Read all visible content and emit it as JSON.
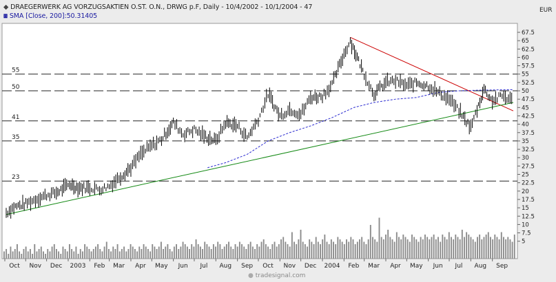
{
  "header": {
    "title": "DRAEGERWERK AG VORZUGSAKTIEN O.ST. O.N., DRWG p.F, Daily - 10/4/2002 - 10/1/2004 - 47",
    "indicator": "SMA [Close, 200]:50.31405",
    "currency": "EUR",
    "title_icon": "diamond-icon",
    "indicator_icon": "sma-icon"
  },
  "watermark": "tradesignal.com",
  "chart_data": {
    "type": "line",
    "x_ticks": [
      "Oct",
      "Nov",
      "Dec",
      "2003",
      "Feb",
      "Mar",
      "Apr",
      "May",
      "Jun",
      "Jul",
      "Aug",
      "Sep",
      "Oct",
      "Nov",
      "Dec",
      "2004",
      "Feb",
      "Mar",
      "Apr",
      "May",
      "Jun",
      "Jul",
      "Aug",
      "Sep"
    ],
    "y_ticks": [
      5,
      7.5,
      10,
      12.5,
      15,
      17.5,
      20,
      22.5,
      25,
      27.5,
      30,
      32.5,
      35,
      37.5,
      40,
      42.5,
      45,
      47.5,
      50,
      52.5,
      55,
      57.5,
      60,
      62.5,
      65,
      67.5
    ],
    "ylim": [
      0,
      69
    ],
    "x_range": [
      "2002-10-04",
      "2004-10-01"
    ],
    "levels": [
      {
        "label": "55",
        "value": 55
      },
      {
        "label": "50",
        "value": 50
      },
      {
        "label": "41",
        "value": 41
      },
      {
        "label": "35",
        "value": 35
      },
      {
        "label": "23",
        "value": 23
      }
    ],
    "price": [
      [
        "2002-10-04",
        13.5
      ],
      [
        "2002-10-15",
        15.2
      ],
      [
        "2002-11-01",
        16.2
      ],
      [
        "2002-11-15",
        17.5
      ],
      [
        "2002-12-01",
        18.8
      ],
      [
        "2002-12-15",
        19.5
      ],
      [
        "2003-01-03",
        22.0
      ],
      [
        "2003-01-15",
        21.0
      ],
      [
        "2003-02-01",
        21.0
      ],
      [
        "2003-02-15",
        20.5
      ],
      [
        "2003-03-01",
        21.5
      ],
      [
        "2003-03-15",
        24.0
      ],
      [
        "2003-04-01",
        27.0
      ],
      [
        "2003-04-15",
        31.0
      ],
      [
        "2003-05-01",
        33.5
      ],
      [
        "2003-05-15",
        35.5
      ],
      [
        "2003-06-01",
        40.5
      ],
      [
        "2003-06-15",
        37.0
      ],
      [
        "2003-07-01",
        38.5
      ],
      [
        "2003-07-15",
        36.5
      ],
      [
        "2003-08-01",
        35.0
      ],
      [
        "2003-08-15",
        40.5
      ],
      [
        "2003-09-01",
        39.5
      ],
      [
        "2003-09-15",
        36.0
      ],
      [
        "2003-10-01",
        41.5
      ],
      [
        "2003-10-15",
        49.0
      ],
      [
        "2003-11-01",
        42.5
      ],
      [
        "2003-11-15",
        44.5
      ],
      [
        "2003-12-01",
        43.0
      ],
      [
        "2003-12-15",
        48.0
      ],
      [
        "2004-01-01",
        48.5
      ],
      [
        "2004-01-15",
        52.0
      ],
      [
        "2004-02-01",
        61.0
      ],
      [
        "2004-02-10",
        65.0
      ],
      [
        "2004-02-20",
        60.0
      ],
      [
        "2004-03-01",
        55.0
      ],
      [
        "2004-03-15",
        49.0
      ],
      [
        "2004-04-01",
        52.5
      ],
      [
        "2004-04-15",
        53.0
      ],
      [
        "2004-05-01",
        51.5
      ],
      [
        "2004-05-15",
        52.5
      ],
      [
        "2004-06-01",
        51.5
      ],
      [
        "2004-06-15",
        49.5
      ],
      [
        "2004-07-01",
        47.5
      ],
      [
        "2004-07-15",
        44.0
      ],
      [
        "2004-08-01",
        39.0
      ],
      [
        "2004-08-10",
        44.5
      ],
      [
        "2004-08-20",
        50.5
      ],
      [
        "2004-09-01",
        47.0
      ],
      [
        "2004-09-15",
        48.5
      ],
      [
        "2004-10-01",
        47.0
      ]
    ],
    "sma200": [
      [
        "2003-07-20",
        27.0
      ],
      [
        "2003-08-15",
        28.5
      ],
      [
        "2003-09-15",
        31.0
      ],
      [
        "2003-10-15",
        35.0
      ],
      [
        "2003-11-15",
        37.5
      ],
      [
        "2003-12-15",
        39.5
      ],
      [
        "2004-01-15",
        42.0
      ],
      [
        "2004-02-15",
        45.0
      ],
      [
        "2004-03-15",
        46.5
      ],
      [
        "2004-04-15",
        47.5
      ],
      [
        "2004-05-15",
        48.0
      ],
      [
        "2004-06-15",
        49.5
      ],
      [
        "2004-07-15",
        50.0
      ],
      [
        "2004-08-15",
        50.2
      ],
      [
        "2004-09-15",
        50.3
      ],
      [
        "2004-10-01",
        50.31405
      ]
    ],
    "trendlines": [
      {
        "color": "#cc0000",
        "from": [
          "2004-02-10",
          66.0
        ],
        "to": [
          "2004-10-01",
          44.0
        ]
      },
      {
        "color": "#118811",
        "from": [
          "2002-10-04",
          13.0
        ],
        "to": [
          "2004-10-01",
          46.5
        ]
      }
    ],
    "volume": [
      3,
      4,
      2,
      5,
      3,
      4,
      6,
      3,
      2,
      4,
      5,
      3,
      4,
      2,
      6,
      3,
      4,
      5,
      3,
      2,
      4,
      3,
      5,
      6,
      4,
      3,
      2,
      5,
      4,
      3,
      6,
      4,
      3,
      5,
      2,
      4,
      3,
      6,
      5,
      4,
      3,
      4,
      5,
      6,
      4,
      3,
      5,
      7,
      4,
      3,
      5,
      4,
      6,
      3,
      4,
      5,
      3,
      4,
      6,
      5,
      4,
      3,
      5,
      4,
      6,
      5,
      4,
      3,
      6,
      5,
      4,
      5,
      7,
      4,
      5,
      6,
      4,
      3,
      5,
      6,
      4,
      5,
      7,
      6,
      5,
      4,
      6,
      5,
      8,
      6,
      5,
      4,
      7,
      6,
      5,
      4,
      6,
      5,
      7,
      6,
      4,
      5,
      6,
      7,
      5,
      4,
      6,
      5,
      7,
      6,
      5,
      4,
      6,
      7,
      5,
      4,
      6,
      5,
      7,
      8,
      6,
      5,
      4,
      6,
      7,
      5,
      6,
      8,
      9,
      7,
      6,
      5,
      11,
      7,
      6,
      8,
      12,
      7,
      6,
      5,
      8,
      7,
      6,
      9,
      7,
      6,
      8,
      10,
      7,
      6,
      8,
      7,
      6,
      9,
      8,
      7,
      6,
      8,
      7,
      9,
      8,
      6,
      7,
      8,
      9,
      7,
      6,
      8,
      14,
      9,
      8,
      7,
      17,
      9,
      8,
      10,
      12,
      9,
      8,
      7,
      11,
      9,
      8,
      10,
      9,
      8,
      7,
      10,
      9,
      8,
      7,
      9,
      8,
      10,
      9,
      8,
      9,
      10,
      8,
      9,
      7,
      10,
      9,
      8,
      11,
      9,
      8,
      10,
      9,
      8,
      12,
      9,
      11,
      10,
      9,
      8,
      7,
      9,
      10,
      8,
      9,
      10,
      11,
      9,
      8,
      10,
      9,
      8,
      11,
      9,
      8,
      9,
      8,
      7,
      10
    ]
  }
}
